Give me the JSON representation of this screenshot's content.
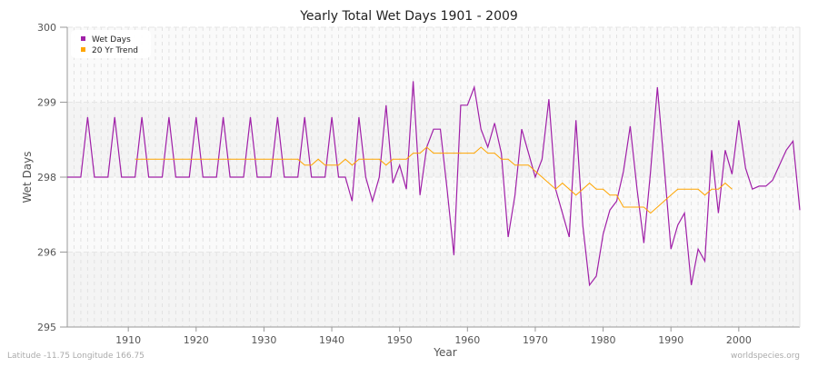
{
  "chart_data": {
    "type": "line",
    "title": "Yearly Total Wet Days 1901 - 2009",
    "xlabel": "Year",
    "ylabel": "Wet Days",
    "xlim": [
      1901,
      2009
    ],
    "ylim": [
      295,
      300
    ],
    "x_ticks": [
      1910,
      1920,
      1930,
      1940,
      1950,
      1960,
      1970,
      1980,
      1990,
      2000
    ],
    "y_ticks": [
      {
        "value": 295,
        "label": "295"
      },
      {
        "value": 296.25,
        "label": "296"
      },
      {
        "value": 297.5,
        "label": "298"
      },
      {
        "value": 298.75,
        "label": "299"
      },
      {
        "value": 300,
        "label": "300"
      }
    ],
    "grid": true,
    "legend_position": "top-left",
    "series": [
      {
        "name": "Wet Days",
        "color": "#a020a8",
        "x_start": 1901,
        "values": [
          297.5,
          297.5,
          297.5,
          298.5,
          297.5,
          297.5,
          297.5,
          298.5,
          297.5,
          297.5,
          297.5,
          298.5,
          297.5,
          297.5,
          297.5,
          298.5,
          297.5,
          297.5,
          297.5,
          298.5,
          297.5,
          297.5,
          297.5,
          298.5,
          297.5,
          297.5,
          297.5,
          298.5,
          297.5,
          297.5,
          297.5,
          298.5,
          297.5,
          297.5,
          297.5,
          298.5,
          297.5,
          297.5,
          297.5,
          298.5,
          297.5,
          297.5,
          297.1,
          298.5,
          297.5,
          297.1,
          297.5,
          298.7,
          297.4,
          297.7,
          297.3,
          299.1,
          297.2,
          298.0,
          298.3,
          298.3,
          297.3,
          296.2,
          298.7,
          298.7,
          299.0,
          298.3,
          298.0,
          298.4,
          297.9,
          296.5,
          297.2,
          298.3,
          297.9,
          297.5,
          297.8,
          298.8,
          297.3,
          296.9,
          296.5,
          298.45,
          296.7,
          295.7,
          295.85,
          296.55,
          296.95,
          297.1,
          297.6,
          298.35,
          297.3,
          296.4,
          297.6,
          299.0,
          297.7,
          296.3,
          296.7,
          296.9,
          295.7,
          296.3,
          296.1,
          297.95,
          296.9,
          297.95,
          297.55,
          298.45,
          297.65,
          297.3,
          297.35,
          297.35,
          297.45,
          297.7,
          297.95,
          298.1,
          296.95
        ]
      },
      {
        "name": "20 Yr Trend",
        "color": "#ffa500",
        "x_start": 1911,
        "values": [
          297.8,
          297.8,
          297.8,
          297.8,
          297.8,
          297.8,
          297.8,
          297.8,
          297.8,
          297.8,
          297.8,
          297.8,
          297.8,
          297.8,
          297.8,
          297.8,
          297.8,
          297.8,
          297.8,
          297.8,
          297.8,
          297.8,
          297.8,
          297.8,
          297.8,
          297.7,
          297.7,
          297.8,
          297.7,
          297.7,
          297.7,
          297.8,
          297.7,
          297.8,
          297.8,
          297.8,
          297.8,
          297.7,
          297.8,
          297.8,
          297.8,
          297.9,
          297.9,
          298.0,
          297.9,
          297.9,
          297.9,
          297.9,
          297.9,
          297.9,
          297.9,
          298.0,
          297.9,
          297.9,
          297.8,
          297.8,
          297.7,
          297.7,
          297.7,
          297.6,
          297.5,
          297.4,
          297.3,
          297.4,
          297.3,
          297.2,
          297.3,
          297.4,
          297.3,
          297.3,
          297.2,
          297.2,
          297.0,
          297.0,
          297.0,
          297.0,
          296.9,
          297.0,
          297.1,
          297.2,
          297.3,
          297.3,
          297.3,
          297.3,
          297.2,
          297.3,
          297.3,
          297.4,
          297.3
        ]
      }
    ]
  },
  "footer": {
    "location": "Latitude -11.75 Longitude 166.75",
    "source": "worldspecies.org"
  }
}
